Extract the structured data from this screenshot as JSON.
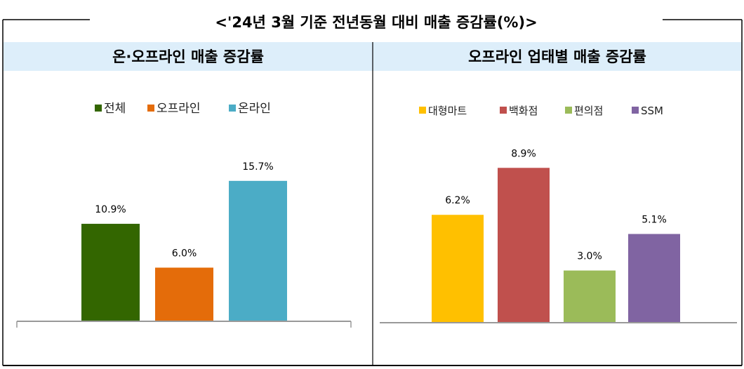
{
  "title": "<'24년 3월 기준 전년동월 대비 매출 증감률(%)>",
  "chart_data": [
    {
      "type": "bar",
      "title": "온·오프라인 매출 증감률",
      "categories": [
        "전체",
        "오프라인",
        "온라인"
      ],
      "values": [
        10.9,
        6.0,
        15.7
      ],
      "labels": [
        "10.9%",
        "6.0%",
        "15.7%"
      ],
      "colors": [
        "#336600",
        "#e46c0a",
        "#4bacc6"
      ],
      "legend": "top",
      "ylim": [
        0,
        18
      ],
      "grid": false
    },
    {
      "type": "bar",
      "title": "오프라인 업태별 매출 증감률",
      "categories": [
        "대형마트",
        "백화점",
        "편의점",
        "SSM"
      ],
      "values": [
        6.2,
        8.9,
        3.0,
        5.1
      ],
      "labels": [
        "6.2%",
        "8.9%",
        "3.0%",
        "5.1%"
      ],
      "colors": [
        "#ffc000",
        "#c0504d",
        "#9bbb59",
        "#8064a2"
      ],
      "legend": "top",
      "ylim": [
        0,
        10
      ],
      "grid": false
    }
  ]
}
